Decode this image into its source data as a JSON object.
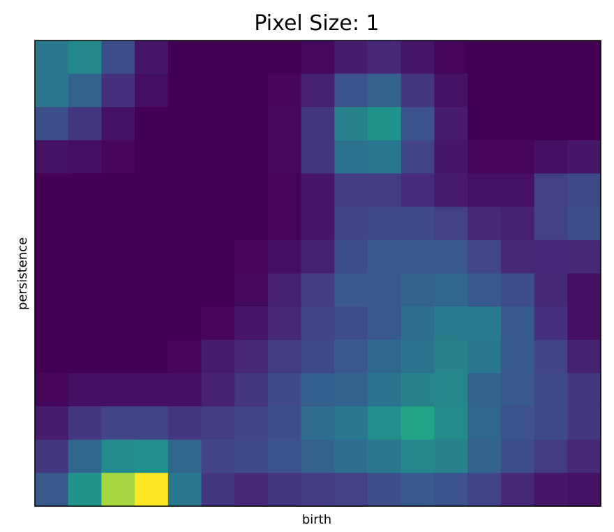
{
  "chart_data": {
    "type": "heatmap",
    "title": "Pixel Size: 1",
    "xlabel": "birth",
    "ylabel": "persistence",
    "colormap": "viridis",
    "vmin": 0,
    "vmax": 1,
    "xticks": [],
    "yticks": [],
    "grid": false,
    "values": [
      [
        0.5,
        0.58,
        0.3,
        0.08,
        0.0,
        0.0,
        0.0,
        0.0,
        0.03,
        0.1,
        0.15,
        0.08,
        0.01,
        0.0,
        0.0,
        0.0,
        0.0
      ],
      [
        0.5,
        0.4,
        0.18,
        0.05,
        0.0,
        0.0,
        0.0,
        0.02,
        0.12,
        0.32,
        0.4,
        0.2,
        0.06,
        0.0,
        0.0,
        0.0,
        0.0
      ],
      [
        0.3,
        0.2,
        0.06,
        0.0,
        0.0,
        0.0,
        0.0,
        0.03,
        0.2,
        0.55,
        0.65,
        0.32,
        0.1,
        0.0,
        0.0,
        0.0,
        0.0
      ],
      [
        0.06,
        0.05,
        0.02,
        0.0,
        0.0,
        0.0,
        0.0,
        0.03,
        0.2,
        0.48,
        0.5,
        0.25,
        0.08,
        0.02,
        0.02,
        0.05,
        0.08
      ],
      [
        0.0,
        0.0,
        0.0,
        0.0,
        0.0,
        0.0,
        0.0,
        0.02,
        0.08,
        0.22,
        0.22,
        0.16,
        0.1,
        0.06,
        0.06,
        0.24,
        0.28
      ],
      [
        0.0,
        0.0,
        0.0,
        0.0,
        0.0,
        0.0,
        0.0,
        0.02,
        0.08,
        0.25,
        0.28,
        0.28,
        0.24,
        0.15,
        0.12,
        0.24,
        0.3
      ],
      [
        0.0,
        0.0,
        0.0,
        0.0,
        0.0,
        0.0,
        0.02,
        0.05,
        0.12,
        0.3,
        0.35,
        0.35,
        0.35,
        0.26,
        0.15,
        0.14,
        0.15
      ],
      [
        0.0,
        0.0,
        0.0,
        0.0,
        0.0,
        0.0,
        0.03,
        0.12,
        0.22,
        0.35,
        0.35,
        0.4,
        0.42,
        0.35,
        0.3,
        0.15,
        0.05
      ],
      [
        0.0,
        0.0,
        0.0,
        0.0,
        0.0,
        0.02,
        0.08,
        0.15,
        0.25,
        0.3,
        0.35,
        0.45,
        0.52,
        0.52,
        0.35,
        0.18,
        0.05
      ],
      [
        0.0,
        0.0,
        0.0,
        0.0,
        0.02,
        0.1,
        0.15,
        0.22,
        0.28,
        0.35,
        0.42,
        0.48,
        0.55,
        0.5,
        0.35,
        0.25,
        0.12
      ],
      [
        0.02,
        0.05,
        0.05,
        0.05,
        0.05,
        0.12,
        0.2,
        0.28,
        0.38,
        0.4,
        0.48,
        0.55,
        0.58,
        0.4,
        0.35,
        0.28,
        0.2
      ],
      [
        0.1,
        0.2,
        0.25,
        0.25,
        0.2,
        0.22,
        0.25,
        0.3,
        0.45,
        0.5,
        0.62,
        0.72,
        0.6,
        0.42,
        0.32,
        0.28,
        0.2
      ],
      [
        0.2,
        0.42,
        0.6,
        0.62,
        0.42,
        0.25,
        0.28,
        0.32,
        0.4,
        0.45,
        0.5,
        0.58,
        0.55,
        0.4,
        0.3,
        0.22,
        0.15
      ],
      [
        0.35,
        0.65,
        0.9,
        1.0,
        0.5,
        0.2,
        0.15,
        0.2,
        0.22,
        0.24,
        0.3,
        0.35,
        0.32,
        0.25,
        0.15,
        0.08,
        0.06
      ]
    ]
  }
}
